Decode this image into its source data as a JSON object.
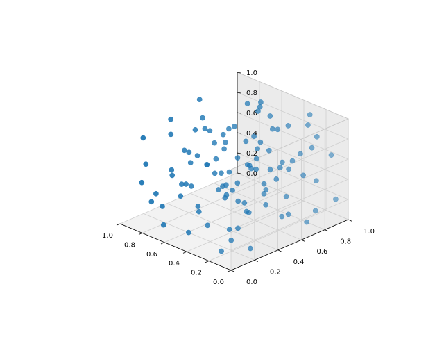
{
  "chart_data": {
    "type": "scatter",
    "projection": "3d",
    "title": "",
    "xlabel": "",
    "ylabel": "",
    "zlabel": "",
    "xlim": [
      0,
      1
    ],
    "ylim": [
      0,
      1
    ],
    "zlim": [
      0,
      1
    ],
    "grid": true,
    "legend": "none",
    "colors": {
      "marker": "#1f77b4",
      "pane": "#f2f2f2",
      "pane_side": "#ebebeb",
      "grid": "#cfcfcf",
      "axis_line": "#000000"
    },
    "x_ticks": [
      "0.0",
      "0.2",
      "0.4",
      "0.6",
      "0.8",
      "1.0"
    ],
    "y_ticks": [
      "0.0",
      "0.2",
      "0.4",
      "0.6",
      "0.8",
      "1.0"
    ],
    "z_ticks": [
      "0.0",
      "0.2",
      "0.4",
      "0.6",
      "0.8",
      "1.0"
    ],
    "points": [
      {
        "x": 0.1,
        "y": 0.95,
        "z": 0.62
      },
      {
        "x": 0.05,
        "y": 0.78,
        "z": 0.91
      },
      {
        "x": 0.18,
        "y": 0.86,
        "z": 0.7
      },
      {
        "x": 0.03,
        "y": 0.62,
        "z": 0.83
      },
      {
        "x": 0.12,
        "y": 0.55,
        "z": 0.74
      },
      {
        "x": 0.22,
        "y": 0.7,
        "z": 0.55
      },
      {
        "x": 0.08,
        "y": 0.4,
        "z": 0.95
      },
      {
        "x": 0.15,
        "y": 0.3,
        "z": 0.82
      },
      {
        "x": 0.25,
        "y": 0.45,
        "z": 0.66
      },
      {
        "x": 0.3,
        "y": 0.9,
        "z": 0.35
      },
      {
        "x": 0.35,
        "y": 0.75,
        "z": 0.48
      },
      {
        "x": 0.05,
        "y": 0.2,
        "z": 0.45
      },
      {
        "x": 0.12,
        "y": 0.1,
        "z": 0.3
      },
      {
        "x": 0.2,
        "y": 0.15,
        "z": 0.58
      },
      {
        "x": 0.28,
        "y": 0.25,
        "z": 0.72
      },
      {
        "x": 0.32,
        "y": 0.6,
        "z": 0.2
      },
      {
        "x": 0.4,
        "y": 0.85,
        "z": 0.12
      },
      {
        "x": 0.45,
        "y": 0.95,
        "z": 0.4
      },
      {
        "x": 0.38,
        "y": 0.5,
        "z": 0.62
      },
      {
        "x": 0.42,
        "y": 0.35,
        "z": 0.9
      },
      {
        "x": 0.48,
        "y": 0.65,
        "z": 0.78
      },
      {
        "x": 0.5,
        "y": 0.2,
        "z": 0.25
      },
      {
        "x": 0.55,
        "y": 0.1,
        "z": 0.55
      },
      {
        "x": 0.52,
        "y": 0.45,
        "z": 0.38
      },
      {
        "x": 0.58,
        "y": 0.8,
        "z": 0.6
      },
      {
        "x": 0.6,
        "y": 0.55,
        "z": 0.85
      },
      {
        "x": 0.62,
        "y": 0.3,
        "z": 0.7
      },
      {
        "x": 0.65,
        "y": 0.95,
        "z": 0.22
      },
      {
        "x": 0.68,
        "y": 0.7,
        "z": 0.45
      },
      {
        "x": 0.7,
        "y": 0.15,
        "z": 0.95
      },
      {
        "x": 0.72,
        "y": 0.4,
        "z": 0.1
      },
      {
        "x": 0.75,
        "y": 0.85,
        "z": 0.88
      },
      {
        "x": 0.78,
        "y": 0.6,
        "z": 0.3
      },
      {
        "x": 0.8,
        "y": 0.25,
        "z": 0.5
      },
      {
        "x": 0.82,
        "y": 0.05,
        "z": 0.65
      },
      {
        "x": 0.85,
        "y": 0.5,
        "z": 0.75
      },
      {
        "x": 0.88,
        "y": 0.75,
        "z": 0.18
      },
      {
        "x": 0.9,
        "y": 0.35,
        "z": 0.35
      },
      {
        "x": 0.92,
        "y": 0.9,
        "z": 0.55
      },
      {
        "x": 0.95,
        "y": 0.15,
        "z": 0.8
      },
      {
        "x": 0.97,
        "y": 0.65,
        "z": 0.92
      },
      {
        "x": 0.93,
        "y": 0.45,
        "z": 0.08
      },
      {
        "x": 0.87,
        "y": 0.95,
        "z": 0.4
      },
      {
        "x": 0.83,
        "y": 0.2,
        "z": 0.15
      },
      {
        "x": 0.77,
        "y": 0.05,
        "z": 0.3
      },
      {
        "x": 0.73,
        "y": 0.55,
        "z": 0.65
      },
      {
        "x": 0.67,
        "y": 0.25,
        "z": 0.42
      },
      {
        "x": 0.63,
        "y": 0.85,
        "z": 0.95
      },
      {
        "x": 0.57,
        "y": 0.6,
        "z": 0.12
      },
      {
        "x": 0.53,
        "y": 0.9,
        "z": 0.7
      },
      {
        "x": 0.47,
        "y": 0.1,
        "z": 0.8
      },
      {
        "x": 0.43,
        "y": 0.3,
        "z": 0.45
      },
      {
        "x": 0.37,
        "y": 0.15,
        "z": 0.2
      },
      {
        "x": 0.33,
        "y": 0.8,
        "z": 0.88
      },
      {
        "x": 0.27,
        "y": 0.05,
        "z": 0.9
      },
      {
        "x": 0.23,
        "y": 0.35,
        "z": 0.3
      },
      {
        "x": 0.17,
        "y": 0.65,
        "z": 0.15
      },
      {
        "x": 0.13,
        "y": 0.85,
        "z": 0.4
      },
      {
        "x": 0.07,
        "y": 0.5,
        "z": 0.25
      },
      {
        "x": 0.02,
        "y": 0.3,
        "z": 0.6
      },
      {
        "x": 0.98,
        "y": 0.8,
        "z": 0.25
      },
      {
        "x": 0.96,
        "y": 0.55,
        "z": 0.45
      },
      {
        "x": 0.91,
        "y": 0.1,
        "z": 0.4
      },
      {
        "x": 0.86,
        "y": 0.3,
        "z": 0.95
      },
      {
        "x": 0.81,
        "y": 0.7,
        "z": 0.62
      },
      {
        "x": 0.76,
        "y": 0.95,
        "z": 0.75
      },
      {
        "x": 0.71,
        "y": 0.45,
        "z": 0.85
      },
      {
        "x": 0.66,
        "y": 0.05,
        "z": 0.12
      },
      {
        "x": 0.61,
        "y": 0.75,
        "z": 0.35
      },
      {
        "x": 0.56,
        "y": 0.35,
        "z": 0.95
      },
      {
        "x": 0.51,
        "y": 0.7,
        "z": 0.52
      },
      {
        "x": 0.46,
        "y": 0.55,
        "z": 0.18
      },
      {
        "x": 0.41,
        "y": 0.05,
        "z": 0.62
      },
      {
        "x": 0.36,
        "y": 0.4,
        "z": 0.05
      },
      {
        "x": 0.31,
        "y": 0.95,
        "z": 0.82
      },
      {
        "x": 0.26,
        "y": 0.6,
        "z": 0.98
      },
      {
        "x": 0.21,
        "y": 0.2,
        "z": 0.1
      },
      {
        "x": 0.16,
        "y": 0.45,
        "z": 0.5
      },
      {
        "x": 0.11,
        "y": 0.75,
        "z": 0.05
      },
      {
        "x": 0.06,
        "y": 0.95,
        "z": 0.2
      },
      {
        "x": 0.04,
        "y": 0.05,
        "z": 0.75
      },
      {
        "x": 0.24,
        "y": 0.9,
        "z": 0.98
      },
      {
        "x": 0.44,
        "y": 0.75,
        "z": 0.95
      },
      {
        "x": 0.64,
        "y": 0.4,
        "z": 0.55
      },
      {
        "x": 0.84,
        "y": 0.85,
        "z": 0.05
      },
      {
        "x": 0.94,
        "y": 0.25,
        "z": 0.2
      },
      {
        "x": 0.54,
        "y": 0.15,
        "z": 0.05
      },
      {
        "x": 0.34,
        "y": 0.25,
        "z": 0.55
      },
      {
        "x": 0.14,
        "y": 0.05,
        "z": 0.1
      },
      {
        "x": 0.74,
        "y": 0.65,
        "z": 0.05
      },
      {
        "x": 0.59,
        "y": 0.5,
        "z": 0.68
      },
      {
        "x": 0.39,
        "y": 0.65,
        "z": 0.35
      },
      {
        "x": 0.19,
        "y": 0.9,
        "z": 0.05
      },
      {
        "x": 0.49,
        "y": 0.85,
        "z": 0.25
      },
      {
        "x": 0.69,
        "y": 0.9,
        "z": 0.85
      },
      {
        "x": 0.89,
        "y": 0.6,
        "z": 0.8
      },
      {
        "x": 0.29,
        "y": 0.5,
        "z": 0.82
      },
      {
        "x": 0.09,
        "y": 0.25,
        "z": 0.05
      },
      {
        "x": 0.79,
        "y": 0.35,
        "z": 0.65
      }
    ]
  }
}
